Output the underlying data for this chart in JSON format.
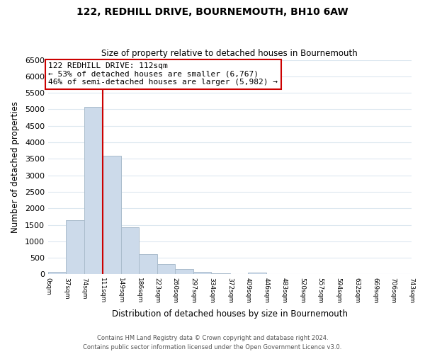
{
  "title": "122, REDHILL DRIVE, BOURNEMOUTH, BH10 6AW",
  "subtitle": "Size of property relative to detached houses in Bournemouth",
  "xlabel": "Distribution of detached houses by size in Bournemouth",
  "ylabel": "Number of detached properties",
  "footer_line1": "Contains HM Land Registry data © Crown copyright and database right 2024.",
  "footer_line2": "Contains public sector information licensed under the Open Government Licence v3.0.",
  "bar_edges": [
    0,
    37,
    74,
    111,
    149,
    186,
    223,
    260,
    297,
    334,
    372,
    409,
    446,
    483,
    520,
    557,
    594,
    632,
    669,
    706,
    743
  ],
  "bar_heights": [
    75,
    1650,
    5080,
    3600,
    1420,
    615,
    310,
    155,
    80,
    25,
    10,
    55,
    0,
    0,
    0,
    0,
    0,
    0,
    0,
    0
  ],
  "bar_color": "#ccdaea",
  "bar_edge_color": "#aabccc",
  "vline_x": 111,
  "vline_color": "#cc0000",
  "ylim": [
    0,
    6500
  ],
  "xlim": [
    0,
    743
  ],
  "annotation_line1": "122 REDHILL DRIVE: 112sqm",
  "annotation_line2": "← 53% of detached houses are smaller (6,767)",
  "annotation_line3": "46% of semi-detached houses are larger (5,982) →",
  "tick_labels": [
    "0sqm",
    "37sqm",
    "74sqm",
    "111sqm",
    "149sqm",
    "186sqm",
    "223sqm",
    "260sqm",
    "297sqm",
    "334sqm",
    "372sqm",
    "409sqm",
    "446sqm",
    "483sqm",
    "520sqm",
    "557sqm",
    "594sqm",
    "632sqm",
    "669sqm",
    "706sqm",
    "743sqm"
  ],
  "yticks": [
    0,
    500,
    1000,
    1500,
    2000,
    2500,
    3000,
    3500,
    4000,
    4500,
    5000,
    5500,
    6000,
    6500
  ],
  "grid_color": "#dde8f0",
  "background_color": "#ffffff"
}
